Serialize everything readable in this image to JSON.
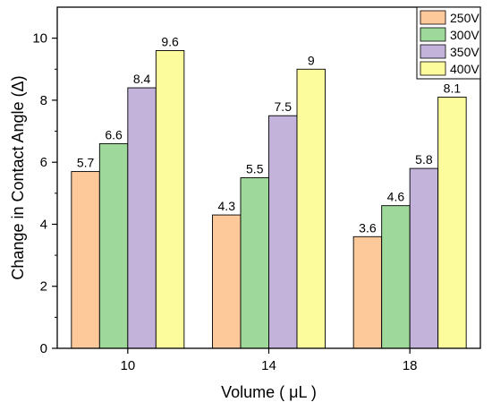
{
  "chart_data": {
    "type": "bar",
    "categories": [
      "10",
      "14",
      "18"
    ],
    "series": [
      {
        "name": "250V",
        "color": "#FDC99B",
        "values": [
          5.7,
          4.3,
          3.6
        ],
        "labels": [
          "5.7",
          "4.3",
          "3.6"
        ]
      },
      {
        "name": "300V",
        "color": "#9ED89A",
        "values": [
          6.6,
          5.5,
          4.6
        ],
        "labels": [
          "6.6",
          "5.5",
          "4.6"
        ]
      },
      {
        "name": "350V",
        "color": "#C3B3DB",
        "values": [
          8.4,
          7.5,
          5.8
        ],
        "labels": [
          "8.4",
          "7.5",
          "5.8"
        ]
      },
      {
        "name": "400V",
        "color": "#FCFC9C",
        "values": [
          9.6,
          9,
          8.1
        ],
        "labels": [
          "9.6",
          "9",
          "8.1"
        ]
      }
    ],
    "xlabel": "Volume ( μL )",
    "ylabel": "Change in Contact Angle (Δ)",
    "ylim": [
      0,
      11
    ],
    "yticks": [
      "0",
      "2",
      "4",
      "6",
      "8",
      "10"
    ],
    "grid": false,
    "legend_position": "top-right"
  }
}
